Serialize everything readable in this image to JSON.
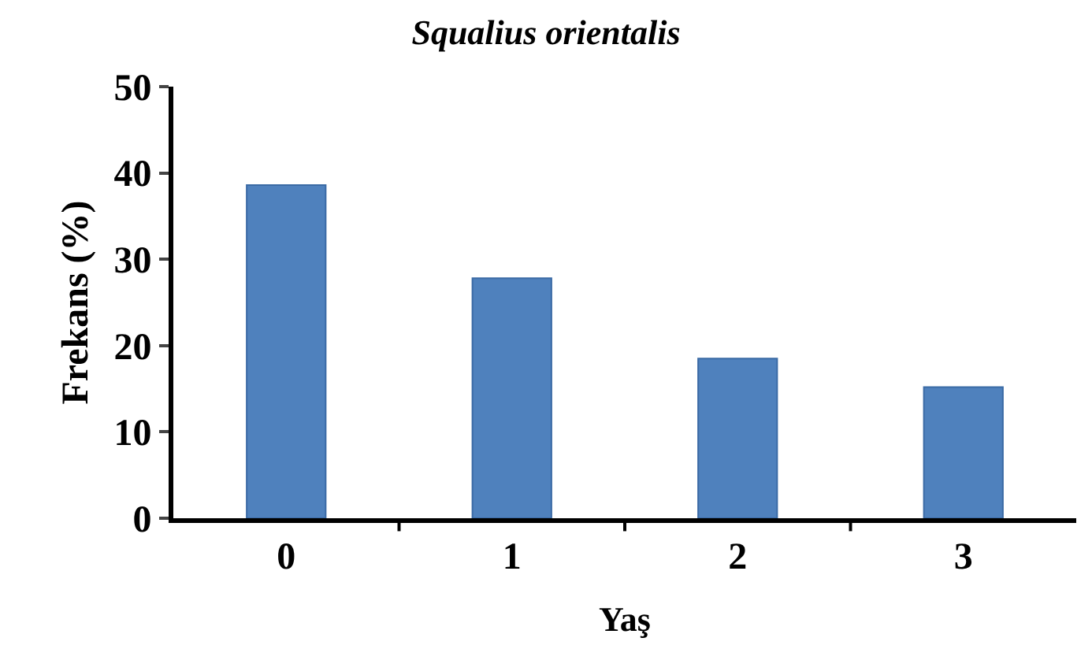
{
  "chart_data": {
    "type": "bar",
    "title": "Squalius orientalis",
    "xlabel": "Yaş",
    "ylabel": "Frekans (%)",
    "categories": [
      "0",
      "1",
      "2",
      "3"
    ],
    "values": [
      38.6,
      27.8,
      18.5,
      15.2
    ],
    "color": "#4f81bd",
    "ylim": [
      0,
      50
    ],
    "yticks": [
      0,
      10,
      20,
      30,
      40,
      50
    ],
    "grid": false
  }
}
